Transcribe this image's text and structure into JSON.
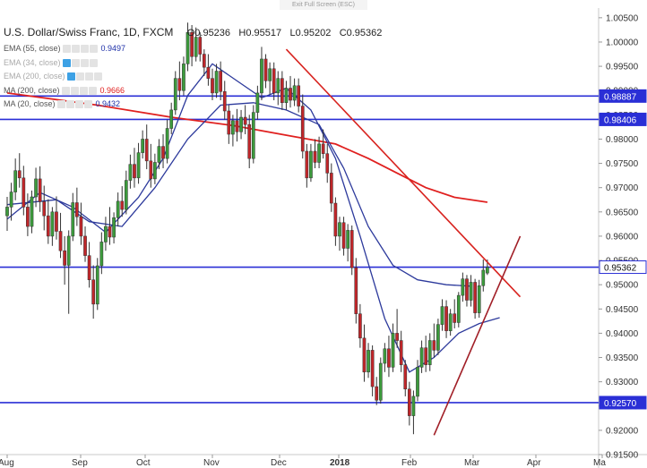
{
  "top_button": "Exit Full Screen (ESC)",
  "header": {
    "symbol": "U.S. Dollar/Swiss Franc, 1D, FXCM",
    "open": "O0.95236",
    "high": "H0.95517",
    "low": "L0.95202",
    "close": "C0.95362"
  },
  "indicators": [
    {
      "label": "EMA (55, close)",
      "value": "0.9497",
      "color": "#1d2fa8",
      "faded": false
    },
    {
      "label": "EMA (34, close)",
      "value": "",
      "color": "#999999",
      "faded": true
    },
    {
      "label": "EMA (200, close)",
      "value": "",
      "color": "#999999",
      "faded": true
    },
    {
      "label": "MA (200, close)",
      "value": "0.9666",
      "color": "#e0201f",
      "faded": false
    },
    {
      "label": "MA (20, close)",
      "value": "0.9432",
      "color": "#1d2fa8",
      "faded": false
    }
  ],
  "colors": {
    "up": "#3c9b3c",
    "down": "#c0262a",
    "ma200": "#e0201f",
    "ema55": "#2d3a9c",
    "ma20": "#2d3a9c",
    "hline": "#2a2fd6",
    "trend": "#d8231f",
    "support_trend": "#a11f27"
  },
  "chart_data": {
    "type": "candlestick",
    "x_ticks": [
      "Aug",
      "Sep",
      "Oct",
      "Nov",
      "Dec",
      "2018",
      "Feb",
      "Mar",
      "Apr",
      "Ma"
    ],
    "ylim": [
      0.915,
      1.007
    ],
    "y_ticks": [
      "1.00500",
      "1.00000",
      "0.99500",
      "0.99000",
      "0.98500",
      "0.98000",
      "0.97500",
      "0.97000",
      "0.96500",
      "0.96000",
      "0.95500",
      "0.95000",
      "0.94500",
      "0.94000",
      "0.93500",
      "0.93000",
      "0.92500",
      "0.92000",
      "0.91500"
    ],
    "horizontal_levels": [
      {
        "value": 0.98887,
        "label": "0.98887"
      },
      {
        "value": 0.98406,
        "label": "0.98406"
      },
      {
        "value": 0.95362,
        "label": "0.95362",
        "current": true
      },
      {
        "value": 0.9257,
        "label": "0.92570"
      }
    ],
    "candles": [
      {
        "o": 0.9642,
        "h": 0.9681,
        "l": 0.9611,
        "c": 0.966
      },
      {
        "o": 0.966,
        "h": 0.971,
        "l": 0.9632,
        "c": 0.9691
      },
      {
        "o": 0.9691,
        "h": 0.976,
        "l": 0.9674,
        "c": 0.9735
      },
      {
        "o": 0.9735,
        "h": 0.9771,
        "l": 0.97,
        "c": 0.972
      },
      {
        "o": 0.972,
        "h": 0.9745,
        "l": 0.9643,
        "c": 0.966
      },
      {
        "o": 0.966,
        "h": 0.9688,
        "l": 0.96,
        "c": 0.962
      },
      {
        "o": 0.962,
        "h": 0.9694,
        "l": 0.9606,
        "c": 0.9681
      },
      {
        "o": 0.9681,
        "h": 0.9741,
        "l": 0.966,
        "c": 0.9718
      },
      {
        "o": 0.9718,
        "h": 0.9744,
        "l": 0.965,
        "c": 0.9671
      },
      {
        "o": 0.9671,
        "h": 0.9704,
        "l": 0.9612,
        "c": 0.9642
      },
      {
        "o": 0.9642,
        "h": 0.9676,
        "l": 0.9584,
        "c": 0.96
      },
      {
        "o": 0.96,
        "h": 0.966,
        "l": 0.958,
        "c": 0.965
      },
      {
        "o": 0.965,
        "h": 0.9682,
        "l": 0.9593,
        "c": 0.961
      },
      {
        "o": 0.961,
        "h": 0.9648,
        "l": 0.9555,
        "c": 0.957
      },
      {
        "o": 0.957,
        "h": 0.96,
        "l": 0.95,
        "c": 0.954
      },
      {
        "o": 0.954,
        "h": 0.9612,
        "l": 0.944,
        "c": 0.96
      },
      {
        "o": 0.96,
        "h": 0.9689,
        "l": 0.959,
        "c": 0.9669
      },
      {
        "o": 0.9669,
        "h": 0.97,
        "l": 0.9621,
        "c": 0.964
      },
      {
        "o": 0.964,
        "h": 0.9669,
        "l": 0.9582,
        "c": 0.96
      },
      {
        "o": 0.96,
        "h": 0.962,
        "l": 0.9547,
        "c": 0.956
      },
      {
        "o": 0.956,
        "h": 0.9588,
        "l": 0.9494,
        "c": 0.951
      },
      {
        "o": 0.951,
        "h": 0.954,
        "l": 0.943,
        "c": 0.946
      },
      {
        "o": 0.946,
        "h": 0.9555,
        "l": 0.9448,
        "c": 0.9539
      },
      {
        "o": 0.9539,
        "h": 0.9608,
        "l": 0.9522,
        "c": 0.9588
      },
      {
        "o": 0.9588,
        "h": 0.964,
        "l": 0.957,
        "c": 0.962
      },
      {
        "o": 0.962,
        "h": 0.966,
        "l": 0.9582,
        "c": 0.9598
      },
      {
        "o": 0.9598,
        "h": 0.9649,
        "l": 0.9585,
        "c": 0.9638
      },
      {
        "o": 0.9638,
        "h": 0.969,
        "l": 0.962,
        "c": 0.9672
      },
      {
        "o": 0.9672,
        "h": 0.9703,
        "l": 0.964,
        "c": 0.9655
      },
      {
        "o": 0.9655,
        "h": 0.9735,
        "l": 0.9645,
        "c": 0.9715
      },
      {
        "o": 0.9715,
        "h": 0.9768,
        "l": 0.9698,
        "c": 0.9748
      },
      {
        "o": 0.9748,
        "h": 0.9782,
        "l": 0.97,
        "c": 0.972
      },
      {
        "o": 0.972,
        "h": 0.9792,
        "l": 0.9708,
        "c": 0.9772
      },
      {
        "o": 0.9772,
        "h": 0.9818,
        "l": 0.976,
        "c": 0.98
      },
      {
        "o": 0.98,
        "h": 0.983,
        "l": 0.9738,
        "c": 0.9755
      },
      {
        "o": 0.9755,
        "h": 0.979,
        "l": 0.97,
        "c": 0.9718
      },
      {
        "o": 0.9718,
        "h": 0.977,
        "l": 0.9707,
        "c": 0.9752
      },
      {
        "o": 0.9752,
        "h": 0.98,
        "l": 0.9738,
        "c": 0.9785
      },
      {
        "o": 0.9785,
        "h": 0.981,
        "l": 0.974,
        "c": 0.976
      },
      {
        "o": 0.976,
        "h": 0.984,
        "l": 0.975,
        "c": 0.9822
      },
      {
        "o": 0.9822,
        "h": 0.9875,
        "l": 0.981,
        "c": 0.986
      },
      {
        "o": 0.986,
        "h": 0.994,
        "l": 0.985,
        "c": 0.9925
      },
      {
        "o": 0.9925,
        "h": 0.996,
        "l": 0.988,
        "c": 0.99
      },
      {
        "o": 0.99,
        "h": 0.997,
        "l": 0.989,
        "c": 0.9955
      },
      {
        "o": 0.9955,
        "h": 1.004,
        "l": 0.994,
        "c": 1.002
      },
      {
        "o": 1.002,
        "h": 1.0035,
        "l": 0.995,
        "c": 0.997
      },
      {
        "o": 0.997,
        "h": 1.003,
        "l": 0.996,
        "c": 1.001
      },
      {
        "o": 1.001,
        "h": 1.002,
        "l": 0.996,
        "c": 0.9975
      },
      {
        "o": 0.9975,
        "h": 0.9985,
        "l": 0.993,
        "c": 0.9948
      },
      {
        "o": 0.9948,
        "h": 0.9975,
        "l": 0.991,
        "c": 0.9925
      },
      {
        "o": 0.9925,
        "h": 0.9945,
        "l": 0.988,
        "c": 0.9895
      },
      {
        "o": 0.9895,
        "h": 0.9955,
        "l": 0.9885,
        "c": 0.994
      },
      {
        "o": 0.994,
        "h": 0.996,
        "l": 0.988,
        "c": 0.9898
      },
      {
        "o": 0.9898,
        "h": 0.992,
        "l": 0.984,
        "c": 0.9858
      },
      {
        "o": 0.9858,
        "h": 0.987,
        "l": 0.979,
        "c": 0.981
      },
      {
        "o": 0.981,
        "h": 0.985,
        "l": 0.9785,
        "c": 0.9838
      },
      {
        "o": 0.9838,
        "h": 0.9862,
        "l": 0.9795,
        "c": 0.9815
      },
      {
        "o": 0.9815,
        "h": 0.986,
        "l": 0.98,
        "c": 0.9845
      },
      {
        "o": 0.9845,
        "h": 0.987,
        "l": 0.981,
        "c": 0.983
      },
      {
        "o": 0.983,
        "h": 0.985,
        "l": 0.974,
        "c": 0.976
      },
      {
        "o": 0.976,
        "h": 0.987,
        "l": 0.975,
        "c": 0.9855
      },
      {
        "o": 0.9855,
        "h": 0.991,
        "l": 0.984,
        "c": 0.9895
      },
      {
        "o": 0.9895,
        "h": 0.999,
        "l": 0.988,
        "c": 0.9965
      },
      {
        "o": 0.9965,
        "h": 0.9975,
        "l": 0.9905,
        "c": 0.992
      },
      {
        "o": 0.992,
        "h": 0.9958,
        "l": 0.9892,
        "c": 0.9945
      },
      {
        "o": 0.9945,
        "h": 0.9958,
        "l": 0.988,
        "c": 0.9895
      },
      {
        "o": 0.9895,
        "h": 0.994,
        "l": 0.987,
        "c": 0.9925
      },
      {
        "o": 0.9925,
        "h": 0.994,
        "l": 0.986,
        "c": 0.9875
      },
      {
        "o": 0.9875,
        "h": 0.992,
        "l": 0.986,
        "c": 0.9905
      },
      {
        "o": 0.9905,
        "h": 0.993,
        "l": 0.9865,
        "c": 0.988
      },
      {
        "o": 0.988,
        "h": 0.9925,
        "l": 0.9868,
        "c": 0.991
      },
      {
        "o": 0.991,
        "h": 0.9925,
        "l": 0.9855,
        "c": 0.9868
      },
      {
        "o": 0.9868,
        "h": 0.9892,
        "l": 0.976,
        "c": 0.9775
      },
      {
        "o": 0.9775,
        "h": 0.979,
        "l": 0.97,
        "c": 0.972
      },
      {
        "o": 0.972,
        "h": 0.979,
        "l": 0.9712,
        "c": 0.9775
      },
      {
        "o": 0.9775,
        "h": 0.98,
        "l": 0.974,
        "c": 0.9752
      },
      {
        "o": 0.9752,
        "h": 0.9805,
        "l": 0.974,
        "c": 0.979
      },
      {
        "o": 0.979,
        "h": 0.982,
        "l": 0.976,
        "c": 0.977
      },
      {
        "o": 0.977,
        "h": 0.979,
        "l": 0.971,
        "c": 0.973
      },
      {
        "o": 0.973,
        "h": 0.975,
        "l": 0.965,
        "c": 0.9668
      },
      {
        "o": 0.9668,
        "h": 0.968,
        "l": 0.958,
        "c": 0.96
      },
      {
        "o": 0.96,
        "h": 0.964,
        "l": 0.957,
        "c": 0.9628
      },
      {
        "o": 0.9628,
        "h": 0.964,
        "l": 0.956,
        "c": 0.9575
      },
      {
        "o": 0.9575,
        "h": 0.9625,
        "l": 0.9548,
        "c": 0.9612
      },
      {
        "o": 0.9612,
        "h": 0.9622,
        "l": 0.952,
        "c": 0.9535
      },
      {
        "o": 0.9535,
        "h": 0.9555,
        "l": 0.942,
        "c": 0.944
      },
      {
        "o": 0.944,
        "h": 0.946,
        "l": 0.937,
        "c": 0.939
      },
      {
        "o": 0.939,
        "h": 0.9418,
        "l": 0.93,
        "c": 0.932
      },
      {
        "o": 0.932,
        "h": 0.938,
        "l": 0.9308,
        "c": 0.9365
      },
      {
        "o": 0.9365,
        "h": 0.9375,
        "l": 0.927,
        "c": 0.929
      },
      {
        "o": 0.929,
        "h": 0.931,
        "l": 0.9252,
        "c": 0.9262
      },
      {
        "o": 0.9262,
        "h": 0.935,
        "l": 0.9255,
        "c": 0.9338
      },
      {
        "o": 0.9338,
        "h": 0.938,
        "l": 0.932,
        "c": 0.9368
      },
      {
        "o": 0.9368,
        "h": 0.9395,
        "l": 0.931,
        "c": 0.933
      },
      {
        "o": 0.933,
        "h": 0.942,
        "l": 0.932,
        "c": 0.94
      },
      {
        "o": 0.94,
        "h": 0.945,
        "l": 0.937,
        "c": 0.9385
      },
      {
        "o": 0.9385,
        "h": 0.9405,
        "l": 0.932,
        "c": 0.9335
      },
      {
        "o": 0.9335,
        "h": 0.9345,
        "l": 0.927,
        "c": 0.9285
      },
      {
        "o": 0.9285,
        "h": 0.93,
        "l": 0.921,
        "c": 0.923
      },
      {
        "o": 0.923,
        "h": 0.9282,
        "l": 0.9192,
        "c": 0.927
      },
      {
        "o": 0.927,
        "h": 0.9345,
        "l": 0.926,
        "c": 0.933
      },
      {
        "o": 0.933,
        "h": 0.9385,
        "l": 0.9318,
        "c": 0.937
      },
      {
        "o": 0.937,
        "h": 0.9395,
        "l": 0.932,
        "c": 0.9335
      },
      {
        "o": 0.9335,
        "h": 0.94,
        "l": 0.9322,
        "c": 0.9385
      },
      {
        "o": 0.9385,
        "h": 0.942,
        "l": 0.935,
        "c": 0.9365
      },
      {
        "o": 0.9365,
        "h": 0.943,
        "l": 0.9355,
        "c": 0.9418
      },
      {
        "o": 0.9418,
        "h": 0.947,
        "l": 0.9405,
        "c": 0.9455
      },
      {
        "o": 0.9455,
        "h": 0.9468,
        "l": 0.939,
        "c": 0.9405
      },
      {
        "o": 0.9405,
        "h": 0.945,
        "l": 0.9395,
        "c": 0.944
      },
      {
        "o": 0.944,
        "h": 0.947,
        "l": 0.941,
        "c": 0.9422
      },
      {
        "o": 0.9422,
        "h": 0.9485,
        "l": 0.9412,
        "c": 0.9478
      },
      {
        "o": 0.9478,
        "h": 0.9525,
        "l": 0.9465,
        "c": 0.9512
      },
      {
        "o": 0.9512,
        "h": 0.952,
        "l": 0.9455,
        "c": 0.9468
      },
      {
        "o": 0.9468,
        "h": 0.952,
        "l": 0.9455,
        "c": 0.9505
      },
      {
        "o": 0.9505,
        "h": 0.9512,
        "l": 0.943,
        "c": 0.9442
      },
      {
        "o": 0.9442,
        "h": 0.951,
        "l": 0.9432,
        "c": 0.9498
      },
      {
        "o": 0.9498,
        "h": 0.9552,
        "l": 0.9486,
        "c": 0.953
      },
      {
        "o": 0.9524,
        "h": 0.9552,
        "l": 0.952,
        "c": 0.9536
      }
    ],
    "lines": {
      "ma200": [
        [
          0,
          0.9895
        ],
        [
          22,
          0.987
        ],
        [
          40,
          0.9845
        ],
        [
          55,
          0.9828
        ],
        [
          70,
          0.9805
        ],
        [
          80,
          0.979
        ],
        [
          88,
          0.976
        ],
        [
          95,
          0.973
        ],
        [
          102,
          0.97
        ],
        [
          109,
          0.968
        ],
        [
          117,
          0.967
        ]
      ],
      "ema55": [
        [
          0,
          0.9665
        ],
        [
          12,
          0.9675
        ],
        [
          20,
          0.963
        ],
        [
          28,
          0.962
        ],
        [
          36,
          0.97
        ],
        [
          44,
          0.98
        ],
        [
          52,
          0.987
        ],
        [
          60,
          0.9875
        ],
        [
          68,
          0.986
        ],
        [
          76,
          0.983
        ],
        [
          82,
          0.974
        ],
        [
          88,
          0.962
        ],
        [
          94,
          0.954
        ],
        [
          100,
          0.951
        ],
        [
          107,
          0.95
        ],
        [
          113,
          0.9497
        ]
      ],
      "ma20": [
        [
          0,
          0.9635
        ],
        [
          8,
          0.969
        ],
        [
          16,
          0.966
        ],
        [
          24,
          0.9608
        ],
        [
          32,
          0.968
        ],
        [
          38,
          0.976
        ],
        [
          44,
          0.989
        ],
        [
          50,
          0.9955
        ],
        [
          56,
          0.992
        ],
        [
          62,
          0.9885
        ],
        [
          68,
          0.9905
        ],
        [
          74,
          0.986
        ],
        [
          80,
          0.976
        ],
        [
          86,
          0.96
        ],
        [
          92,
          0.943
        ],
        [
          98,
          0.932
        ],
        [
          104,
          0.935
        ],
        [
          110,
          0.94
        ],
        [
          115,
          0.942
        ],
        [
          120,
          0.9432
        ]
      ]
    },
    "trend_lines": [
      {
        "name": "resistance",
        "from": [
          68,
          0.9985
        ],
        "to": [
          125,
          0.9475
        ]
      },
      {
        "name": "support",
        "from": [
          104,
          0.919
        ],
        "to": [
          125,
          0.96
        ]
      }
    ]
  }
}
